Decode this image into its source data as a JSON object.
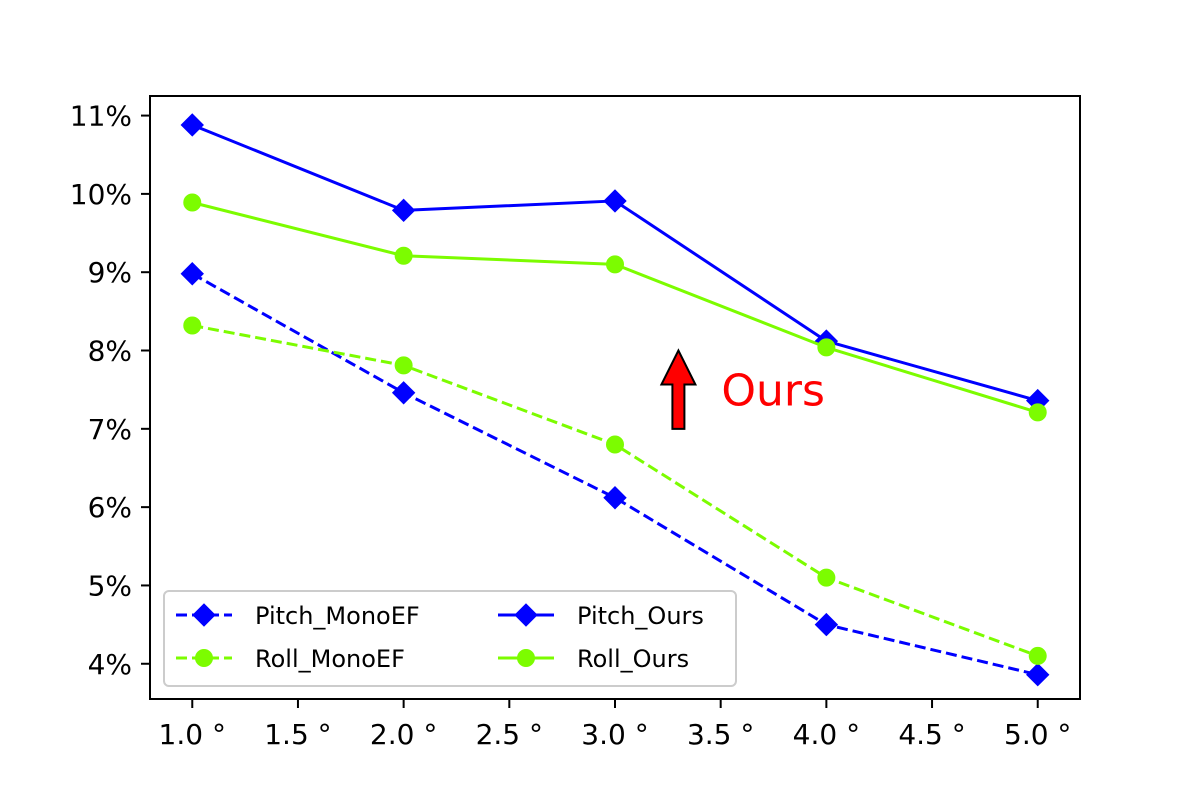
{
  "chart_data": {
    "type": "line",
    "x": [
      1.0,
      2.0,
      3.0,
      4.0,
      5.0
    ],
    "xlim": [
      0.8,
      5.2
    ],
    "ylim": [
      3.55,
      11.25
    ],
    "x_ticks": [
      {
        "value": 1.0,
        "label": "1.0 °"
      },
      {
        "value": 1.5,
        "label": "1.5 °"
      },
      {
        "value": 2.0,
        "label": "2.0 °"
      },
      {
        "value": 2.5,
        "label": "2.5 °"
      },
      {
        "value": 3.0,
        "label": "3.0 °"
      },
      {
        "value": 3.5,
        "label": "3.5 °"
      },
      {
        "value": 4.0,
        "label": "4.0 °"
      },
      {
        "value": 4.5,
        "label": "4.5 °"
      },
      {
        "value": 5.0,
        "label": "5.0 °"
      }
    ],
    "y_ticks": [
      {
        "value": 4,
        "label": "4%"
      },
      {
        "value": 5,
        "label": "5%"
      },
      {
        "value": 6,
        "label": "6%"
      },
      {
        "value": 7,
        "label": "7%"
      },
      {
        "value": 8,
        "label": "8%"
      },
      {
        "value": 9,
        "label": "9%"
      },
      {
        "value": 10,
        "label": "10%"
      },
      {
        "value": 11,
        "label": "11%"
      }
    ],
    "grid": false,
    "legend": {
      "placement": "lower-left",
      "columns": 2
    },
    "series": [
      {
        "name": "Pitch_MonoEF",
        "values": [
          8.98,
          7.46,
          6.12,
          4.5,
          3.86
        ],
        "color": "#0000ff",
        "dashed": true,
        "marker": "diamond"
      },
      {
        "name": "Roll_MonoEF",
        "values": [
          8.32,
          7.81,
          6.8,
          5.1,
          4.1
        ],
        "color": "#7cfc00",
        "dashed": true,
        "marker": "circle"
      },
      {
        "name": "Pitch_Ours",
        "values": [
          10.88,
          9.79,
          9.91,
          8.12,
          7.36
        ],
        "color": "#0000ff",
        "dashed": false,
        "marker": "diamond"
      },
      {
        "name": "Roll_Ours",
        "values": [
          9.89,
          9.21,
          9.1,
          8.04,
          7.21
        ],
        "color": "#7cfc00",
        "dashed": false,
        "marker": "circle"
      }
    ],
    "annotation": {
      "text": "Ours",
      "x": 3.3,
      "y_from": 7.0,
      "y_to": 8.0,
      "color": "#ff0000"
    }
  }
}
